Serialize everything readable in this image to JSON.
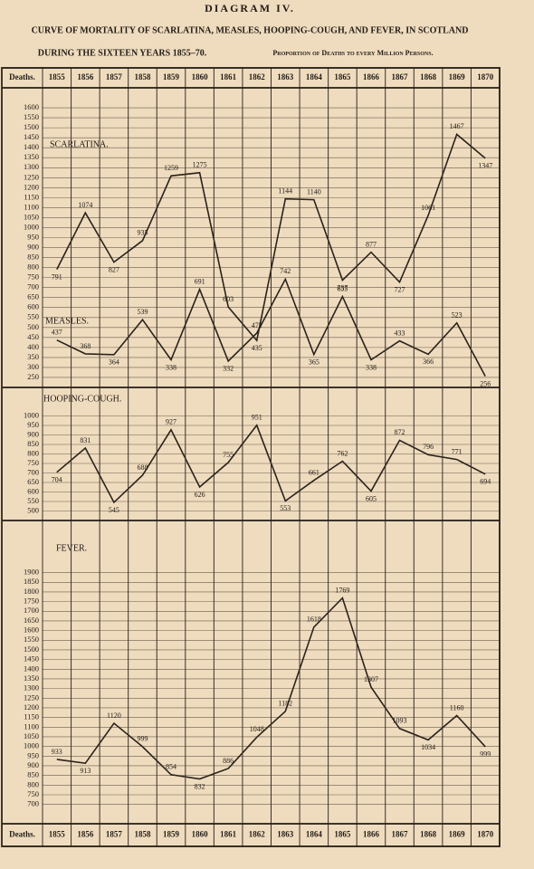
{
  "title": "DIAGRAM IV.",
  "subtitle": "CURVE OF MORTALITY OF SCARLATINA, MEASLES, HOOPING-COUGH, AND FEVER, IN SCOTLAND",
  "subtitle2": "DURING THE SIXTEEN YEARS 1855–70.",
  "subtitle3": "Proportion of Deaths to every Million Persons.",
  "row_label": "Deaths.",
  "chart_data": [
    {
      "type": "line",
      "categories": [
        "1855",
        "1856",
        "1857",
        "1858",
        "1859",
        "1860",
        "1861",
        "1862",
        "1863",
        "1864",
        "1865",
        "1866",
        "1867",
        "1868",
        "1869",
        "1870"
      ],
      "ylim": [
        200,
        1700
      ],
      "yticks": [
        250,
        300,
        350,
        400,
        450,
        500,
        550,
        600,
        650,
        700,
        750,
        800,
        850,
        900,
        950,
        1000,
        1050,
        1100,
        1150,
        1200,
        1250,
        1300,
        1350,
        1400,
        1450,
        1500,
        1550,
        1600
      ],
      "grid": true,
      "series": [
        {
          "name": "SCARLATINA.",
          "color": "#2a231c",
          "values": [
            791,
            1074,
            827,
            935,
            1259,
            1275,
            603,
            435,
            1144,
            1140,
            737,
            877,
            727,
            1061,
            1467,
            1347
          ]
        },
        {
          "name": "MEASLES.",
          "color": "#2a231c",
          "values": [
            437,
            368,
            364,
            539,
            338,
            691,
            332,
            472,
            742,
            365,
            655,
            338,
            433,
            366,
            523,
            256
          ]
        }
      ]
    },
    {
      "type": "line",
      "categories": [
        "1855",
        "1856",
        "1857",
        "1858",
        "1859",
        "1860",
        "1861",
        "1862",
        "1863",
        "1864",
        "1865",
        "1866",
        "1867",
        "1868",
        "1869",
        "1870"
      ],
      "ylim": [
        450,
        1150
      ],
      "yticks": [
        500,
        550,
        600,
        650,
        700,
        750,
        800,
        850,
        900,
        950,
        1000
      ],
      "grid": true,
      "series": [
        {
          "name": "HOOPING-COUGH.",
          "color": "#2a231c",
          "values": [
            704,
            831,
            545,
            688,
            927,
            626,
            755,
            951,
            553,
            661,
            762,
            605,
            872,
            796,
            771,
            694
          ]
        }
      ]
    },
    {
      "type": "line",
      "categories": [
        "1855",
        "1856",
        "1857",
        "1858",
        "1859",
        "1860",
        "1861",
        "1862",
        "1863",
        "1864",
        "1865",
        "1866",
        "1867",
        "1868",
        "1869",
        "1870"
      ],
      "ylim": [
        600,
        2170
      ],
      "yticks": [
        700,
        750,
        800,
        850,
        900,
        950,
        1000,
        1050,
        1100,
        1150,
        1200,
        1250,
        1300,
        1350,
        1400,
        1450,
        1500,
        1550,
        1600,
        1650,
        1700,
        1750,
        1800,
        1850,
        1900
      ],
      "grid": true,
      "series": [
        {
          "name": "FEVER.",
          "color": "#2a231c",
          "values": [
            933,
            913,
            1120,
            999,
            854,
            832,
            886,
            1048,
            1182,
            1618,
            1769,
            1307,
            1093,
            1034,
            1160,
            999
          ]
        }
      ]
    }
  ]
}
